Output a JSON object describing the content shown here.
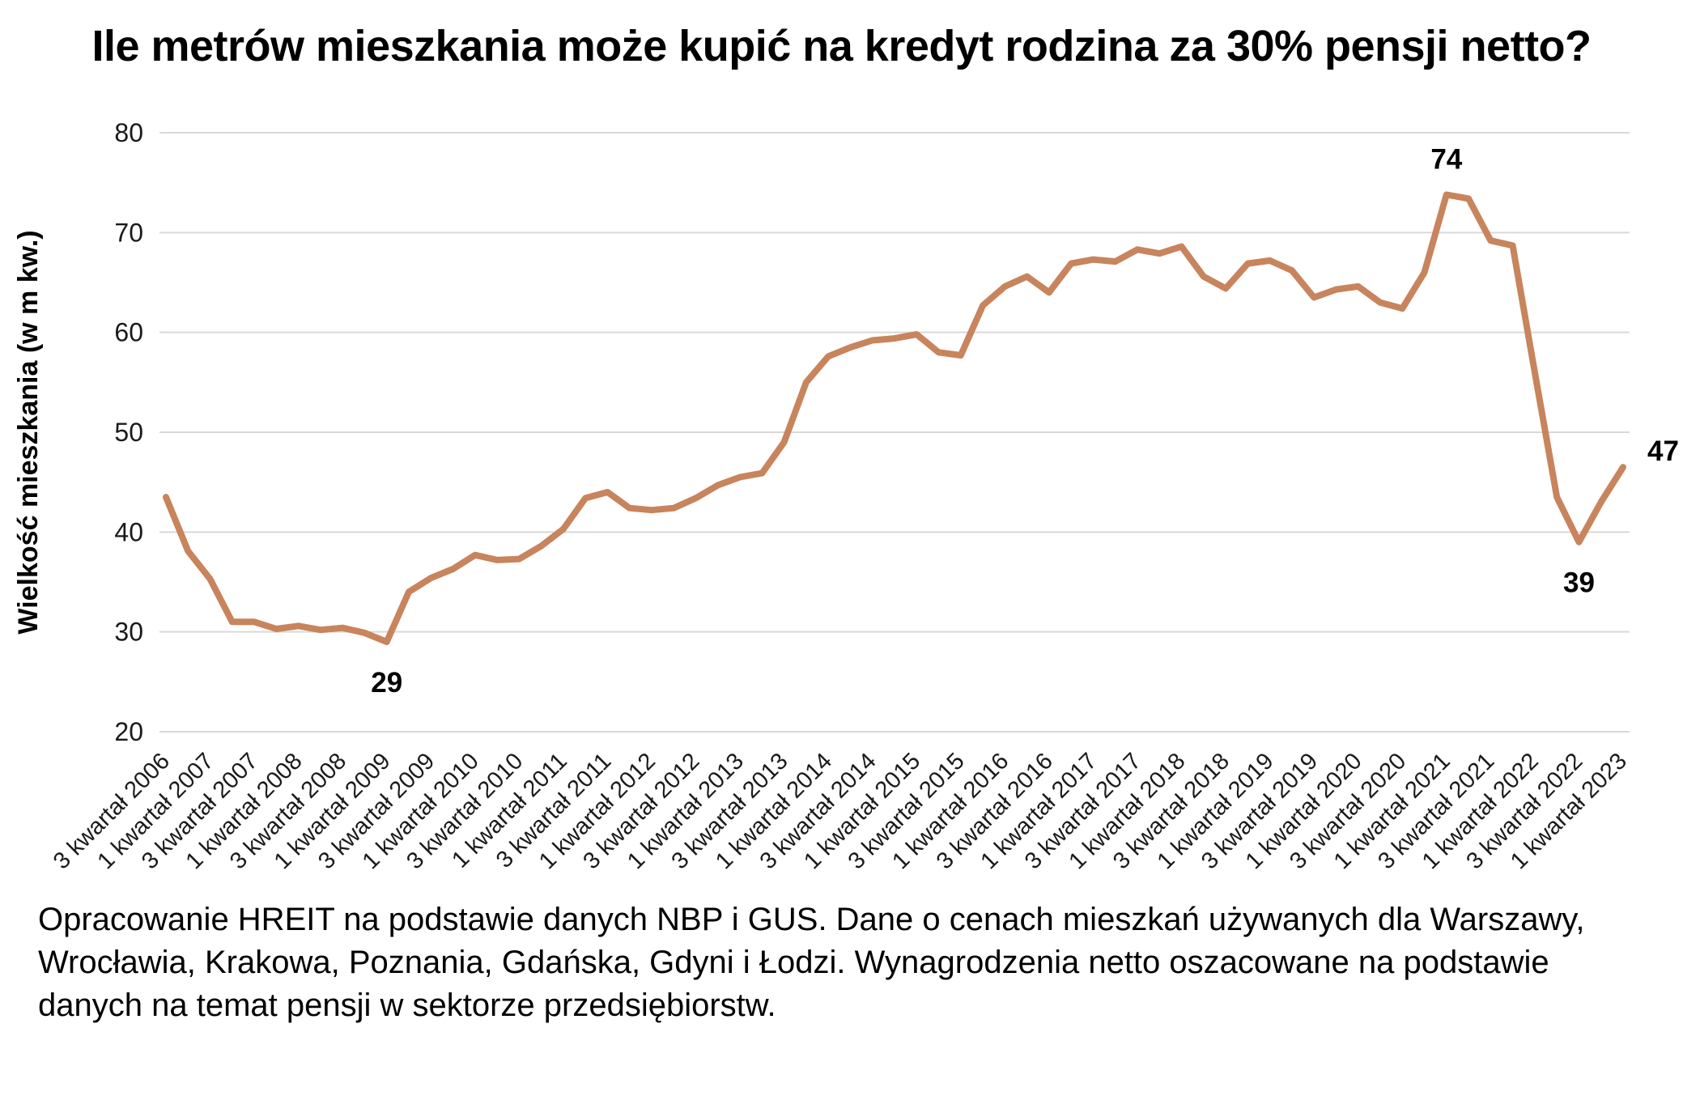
{
  "title": "Ile metrów mieszkania może kupić na kredyt rodzina za 30% pensji netto?",
  "footer": "Opracowanie HREIT na podstawie danych NBP i GUS. Dane o cenach mieszkań używanych dla Warszawy, Wrocławia, Krakowa, Poznania, Gdańska, Gdyni i Łodzi. Wynagrodzenia netto oszacowane na podstawie danych na temat pensji w sektorze przedsiębiorstw.",
  "chart_data": {
    "type": "line",
    "title": "Ile metrów mieszkania może kupić na kredyt rodzina za 30% pensji netto?",
    "xlabel": "",
    "ylabel": "Wielkość mieszkania (w m kw.)",
    "ylim": [
      20,
      80
    ],
    "yticks": [
      20,
      30,
      40,
      50,
      60,
      70,
      80
    ],
    "grid": true,
    "legend": "none",
    "line_color": "#C8845C",
    "grid_color": "#d9d9d9",
    "text_color": "#1a1a1a",
    "tick_every": 2,
    "x_tick_labels": [
      "3 kwartał 2006",
      "1 kwartał 2007",
      "3 kwartał 2007",
      "1 kwartał 2008",
      "3 kwartał 2008",
      "1 kwartał 2009",
      "3 kwartał 2009",
      "1 kwartał 2010",
      "3 kwartał 2010",
      "1 kwartał 2011",
      "3 kwartał 2011",
      "1 kwartał 2012",
      "3 kwartał 2012",
      "1 kwartał 2013",
      "3 kwartał 2013",
      "1 kwartał 2014",
      "3 kwartał 2014",
      "1 kwartał 2015",
      "3 kwartał 2015",
      "1 kwartał 2016",
      "3 kwartał 2016",
      "1 kwartał 2017",
      "3 kwartał 2017",
      "1 kwartał 2018",
      "3 kwartał 2018",
      "1 kwartał 2019",
      "3 kwartał 2019",
      "1 kwartał 2020",
      "3 kwartał 2020",
      "1 kwartał 2021",
      "3 kwartał 2021",
      "1 kwartał 2022",
      "3 kwartał 2022",
      "1 kwartał 2023"
    ],
    "values": [
      43.5,
      38.1,
      35.3,
      31.0,
      31.0,
      30.3,
      30.6,
      30.2,
      30.4,
      29.9,
      29.0,
      34.0,
      35.4,
      36.3,
      37.7,
      37.2,
      37.3,
      38.6,
      40.3,
      43.4,
      44.0,
      42.4,
      42.2,
      42.4,
      43.4,
      44.7,
      45.5,
      45.9,
      49.0,
      55.0,
      57.6,
      58.5,
      59.2,
      59.4,
      59.8,
      58.0,
      57.7,
      62.7,
      64.6,
      65.6,
      64.0,
      66.9,
      67.3,
      67.1,
      68.3,
      67.9,
      68.6,
      65.6,
      64.4,
      66.9,
      67.2,
      66.2,
      63.5,
      64.3,
      64.6,
      63.0,
      62.4,
      66.0,
      73.8,
      73.4,
      69.2,
      68.7,
      56.0,
      43.5,
      39.0,
      43.0,
      46.5
    ],
    "annotations": [
      {
        "text": "29",
        "index": 10,
        "position": "below"
      },
      {
        "text": "74",
        "index": 58,
        "position": "above"
      },
      {
        "text": "39",
        "index": 64,
        "position": "below"
      },
      {
        "text": "47",
        "index": 66,
        "position": "right"
      }
    ]
  }
}
